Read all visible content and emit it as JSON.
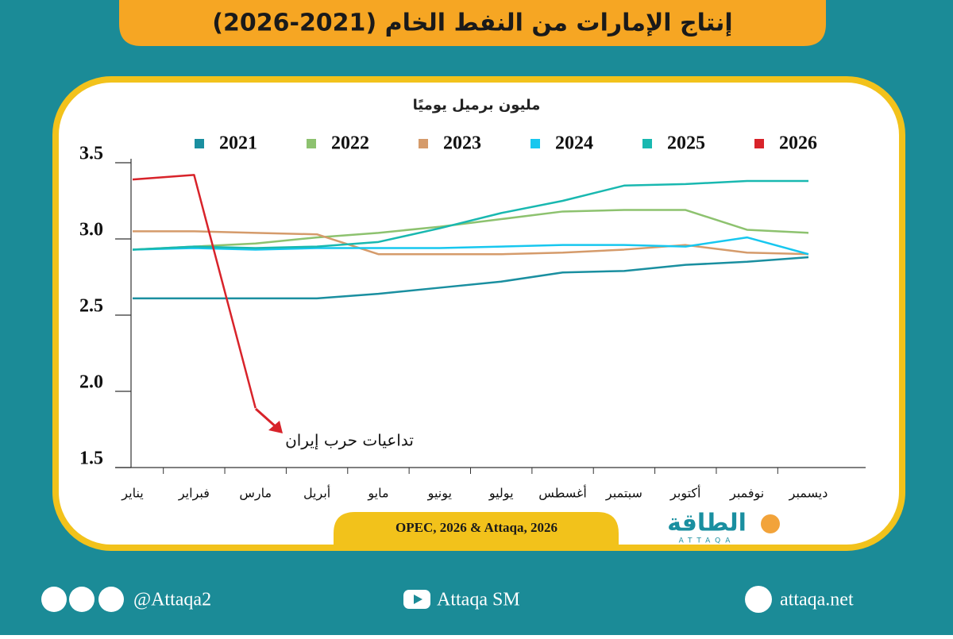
{
  "chart_data": {
    "type": "line",
    "title": "إنتاج الإمارات من النفط الخام (2021-2026)",
    "ylabel": "مليون برميل يوميًا",
    "categories": [
      "يناير",
      "فبراير",
      "مارس",
      "أبريل",
      "مايو",
      "يونيو",
      "يوليو",
      "أغسطس",
      "سبتمبر",
      "أكتوبر",
      "نوفمبر",
      "ديسمبر"
    ],
    "series": [
      {
        "name": "2021",
        "color": "#1a8fa0",
        "values": [
          2.61,
          2.61,
          2.61,
          2.61,
          2.64,
          2.68,
          2.72,
          2.78,
          2.79,
          2.83,
          2.85,
          2.88
        ]
      },
      {
        "name": "2022",
        "color": "#8dc26f",
        "values": [
          2.93,
          2.95,
          2.97,
          3.01,
          3.04,
          3.08,
          3.13,
          3.18,
          3.19,
          3.19,
          3.06,
          3.04
        ]
      },
      {
        "name": "2023",
        "color": "#d59b6b",
        "values": [
          3.05,
          3.05,
          3.04,
          3.03,
          2.9,
          2.9,
          2.9,
          2.91,
          2.93,
          2.96,
          2.91,
          2.9
        ]
      },
      {
        "name": "2024",
        "color": "#17c7ef",
        "values": [
          2.93,
          2.94,
          2.93,
          2.94,
          2.94,
          2.94,
          2.95,
          2.96,
          2.96,
          2.95,
          3.01,
          2.9
        ]
      },
      {
        "name": "2025",
        "color": "#19b8b0",
        "values": [
          2.93,
          2.95,
          2.94,
          2.95,
          2.98,
          3.07,
          3.17,
          3.25,
          3.35,
          3.36,
          3.38,
          3.38
        ]
      },
      {
        "name": "2026",
        "color": "#d8232a",
        "values": [
          3.39,
          3.42,
          1.89,
          null,
          null,
          null,
          null,
          null,
          null,
          null,
          null,
          null
        ]
      }
    ],
    "ylim": [
      1.5,
      3.5
    ],
    "yticks": [
      1.5,
      {
        "value": 2,
        "label": "2.0"
      },
      2.5,
      {
        "value": 3,
        "label": "3.0"
      },
      3.5
    ],
    "annotation": "تداعيات حرب إيران",
    "source": "OPEC, 2026 & Attaqa, 2026"
  },
  "branding": {
    "logo": "الطاقة",
    "logo_latin": "ATTAQA",
    "twitter": "@Attaqa2",
    "youtube": "Attaqa SM",
    "website": "attaqa.net"
  }
}
